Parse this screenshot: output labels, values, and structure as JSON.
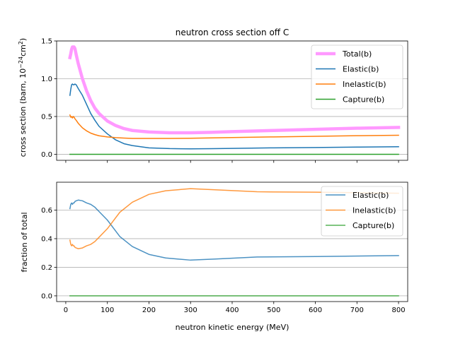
{
  "chart_data": [
    {
      "type": "line",
      "title": "neutron cross section off C",
      "xlabel": "",
      "ylabel_main": "cross section (barn, 10",
      "ylabel_exp1": "−24",
      "ylabel_mid": "cm",
      "ylabel_exp2": "2",
      "ylabel_end": ")",
      "xlim": [
        -22,
        822
      ],
      "ylim": [
        -0.08,
        1.5
      ],
      "xticks": [
        0,
        100,
        200,
        300,
        400,
        500,
        600,
        700,
        800
      ],
      "yticks": [
        0.0,
        0.5,
        1.0,
        1.5
      ],
      "ytick_labels": [
        "0.0",
        "0.5",
        "1.0",
        "1.5"
      ],
      "grid": "y",
      "legend": "top-right",
      "series": [
        {
          "name": "Total(b)",
          "color": "#ff99ff",
          "width": 4.5,
          "x": [
            10,
            12,
            14,
            16,
            18,
            20,
            22,
            25,
            30,
            40,
            50,
            60,
            70,
            80,
            100,
            120,
            140,
            160,
            200,
            250,
            300,
            350,
            400,
            500,
            600,
            700,
            800
          ],
          "y": [
            1.28,
            1.33,
            1.39,
            1.42,
            1.42,
            1.42,
            1.4,
            1.32,
            1.2,
            1.0,
            0.84,
            0.71,
            0.61,
            0.54,
            0.44,
            0.38,
            0.34,
            0.315,
            0.295,
            0.285,
            0.285,
            0.29,
            0.3,
            0.315,
            0.33,
            0.345,
            0.355
          ]
        },
        {
          "name": "Elastic(b)",
          "color": "#1f77b4",
          "width": 1.5,
          "x": [
            10,
            12,
            14,
            16,
            18,
            20,
            22,
            25,
            30,
            40,
            50,
            60,
            70,
            80,
            100,
            120,
            140,
            160,
            200,
            250,
            300,
            350,
            400,
            500,
            600,
            700,
            800
          ],
          "y": [
            0.78,
            0.86,
            0.92,
            0.93,
            0.92,
            0.92,
            0.93,
            0.92,
            0.87,
            0.78,
            0.66,
            0.54,
            0.45,
            0.37,
            0.27,
            0.19,
            0.14,
            0.115,
            0.085,
            0.075,
            0.072,
            0.074,
            0.078,
            0.085,
            0.09,
            0.095,
            0.1
          ]
        },
        {
          "name": "Inelastic(b)",
          "color": "#ff7f0e",
          "width": 1.5,
          "x": [
            10,
            12,
            14,
            16,
            18,
            20,
            22,
            25,
            30,
            40,
            50,
            60,
            70,
            80,
            100,
            120,
            140,
            160,
            200,
            250,
            300,
            350,
            400,
            500,
            600,
            700,
            800
          ],
          "y": [
            0.52,
            0.49,
            0.5,
            0.48,
            0.5,
            0.49,
            0.47,
            0.45,
            0.41,
            0.35,
            0.31,
            0.28,
            0.26,
            0.245,
            0.23,
            0.22,
            0.215,
            0.21,
            0.21,
            0.21,
            0.212,
            0.217,
            0.222,
            0.23,
            0.238,
            0.246,
            0.252
          ]
        },
        {
          "name": "Capture(b)",
          "color": "#2ca02c",
          "width": 1.5,
          "x": [
            10,
            800
          ],
          "y": [
            0.0,
            0.0
          ]
        }
      ]
    },
    {
      "type": "line",
      "title": "",
      "xlabel": "neutron kinetic energy (MeV)",
      "ylabel": "fraction of total",
      "xlim": [
        -22,
        822
      ],
      "ylim": [
        -0.04,
        0.795
      ],
      "xticks": [
        0,
        100,
        200,
        300,
        400,
        500,
        600,
        700,
        800
      ],
      "yticks": [
        0.0,
        0.2,
        0.4,
        0.6
      ],
      "ytick_labels": [
        "0.0",
        "0.2",
        "0.4",
        "0.6"
      ],
      "grid": "y",
      "legend": "top-right",
      "series": [
        {
          "name": "Elastic(b)",
          "color": "#1f77b4",
          "width": 1.5,
          "alpha": 0.8,
          "x": [
            10,
            12,
            14,
            16,
            18,
            20,
            22,
            25,
            30,
            40,
            50,
            60,
            70,
            80,
            100,
            130,
            160,
            200,
            240,
            300,
            360,
            460,
            600,
            800
          ],
          "y": [
            0.61,
            0.64,
            0.65,
            0.64,
            0.65,
            0.65,
            0.66,
            0.665,
            0.67,
            0.665,
            0.65,
            0.64,
            0.62,
            0.59,
            0.53,
            0.415,
            0.345,
            0.29,
            0.265,
            0.25,
            0.258,
            0.272,
            0.275,
            0.282
          ]
        },
        {
          "name": "Inelastic(b)",
          "color": "#ff7f0e",
          "width": 1.5,
          "alpha": 0.8,
          "x": [
            10,
            12,
            14,
            16,
            18,
            20,
            22,
            25,
            30,
            40,
            50,
            60,
            70,
            80,
            100,
            130,
            160,
            200,
            240,
            300,
            360,
            460,
            600,
            800
          ],
          "y": [
            0.39,
            0.36,
            0.35,
            0.36,
            0.35,
            0.35,
            0.34,
            0.335,
            0.33,
            0.335,
            0.35,
            0.36,
            0.38,
            0.41,
            0.47,
            0.585,
            0.655,
            0.71,
            0.735,
            0.75,
            0.742,
            0.728,
            0.725,
            0.718
          ]
        },
        {
          "name": "Capture(b)",
          "color": "#2ca02c",
          "width": 1.5,
          "alpha": 0.8,
          "x": [
            10,
            800
          ],
          "y": [
            0.0,
            0.0
          ]
        }
      ]
    }
  ]
}
